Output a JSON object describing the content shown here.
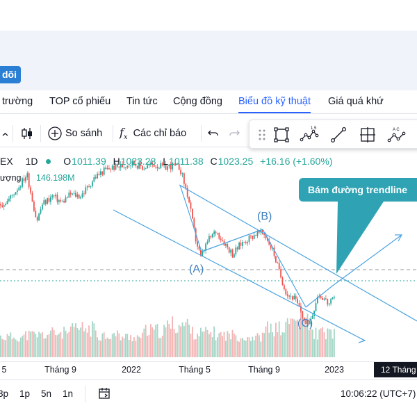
{
  "header": {
    "follow_button": "dõi"
  },
  "nav": {
    "tabs": [
      {
        "label": "trường"
      },
      {
        "label": "TOP cổ phiếu"
      },
      {
        "label": "Tin tức"
      },
      {
        "label": "Cộng đồng"
      },
      {
        "label": "Biểu đồ kỹ thuật",
        "active": true
      },
      {
        "label": "Giá quá khứ"
      }
    ]
  },
  "toolbar": {
    "compare_label": "So sánh",
    "indicators_label": "Các chỉ báo",
    "icons": [
      "chevron-down-icon",
      "candlestick-icon",
      "plus-circle-icon",
      "fx-icon",
      "undo-icon",
      "redo-icon"
    ]
  },
  "drawing_tools": [
    "drag-handle-icon",
    "rectangle-icon",
    "elliott-wave-icon",
    "trendline-icon",
    "measure-icon",
    "abc-pattern-icon"
  ],
  "legend": {
    "symbol": "EX",
    "interval": "1D",
    "open_label": "O",
    "open": "1011.39",
    "high_label": "H",
    "high": "1023.28",
    "low_label": "L",
    "low": "1011.38",
    "close_label": "C",
    "close": "1023.25",
    "change": "+16.16 (+1.60%)",
    "volume_label": "ượng",
    "volume": "146.198M"
  },
  "chart_data": {
    "type": "candlestick",
    "annotations": {
      "callout": "Bám đường trendline",
      "wave_a": "(A)",
      "wave_b": "(B)",
      "wave_c": "(C)"
    },
    "x_ticks": [
      "5",
      "Tháng 9",
      "2022",
      "Tháng 5",
      "Tháng 9",
      "2023"
    ],
    "crosshair_date": "12 Tháng",
    "price_path": [
      [
        0,
        1420
      ],
      [
        10,
        1430
      ],
      [
        25,
        1470
      ],
      [
        38,
        1510
      ],
      [
        45,
        1440
      ],
      [
        52,
        1370
      ],
      [
        60,
        1420
      ],
      [
        75,
        1445
      ],
      [
        88,
        1425
      ],
      [
        100,
        1450
      ],
      [
        115,
        1445
      ],
      [
        125,
        1470
      ],
      [
        135,
        1500
      ],
      [
        148,
        1520
      ],
      [
        160,
        1530
      ],
      [
        175,
        1535
      ],
      [
        190,
        1545
      ],
      [
        205,
        1530
      ],
      [
        220,
        1540
      ],
      [
        235,
        1530
      ],
      [
        245,
        1535
      ],
      [
        258,
        1530
      ],
      [
        270,
        1440
      ],
      [
        280,
        1320
      ],
      [
        288,
        1260
      ],
      [
        298,
        1310
      ],
      [
        310,
        1340
      ],
      [
        322,
        1305
      ],
      [
        334,
        1270
      ],
      [
        345,
        1300
      ],
      [
        358,
        1320
      ],
      [
        370,
        1335
      ],
      [
        380,
        1330
      ],
      [
        392,
        1280
      ],
      [
        402,
        1210
      ],
      [
        412,
        1150
      ],
      [
        422,
        1140
      ],
      [
        432,
        1100
      ],
      [
        440,
        1055
      ],
      [
        448,
        1085
      ],
      [
        456,
        1150
      ],
      [
        465,
        1140
      ],
      [
        472,
        1120
      ],
      [
        480,
        1135
      ]
    ],
    "volume_levels": [
      0.3,
      0.35,
      0.4,
      0.5,
      0.35,
      0.3,
      0.45,
      0.6,
      0.4,
      0.35,
      0.3,
      0.5,
      0.7,
      0.4
    ]
  },
  "bottom": {
    "ranges": [
      "3p",
      "1p",
      "5n",
      "1n"
    ],
    "clock": "10:06:22 (UTC+7)"
  }
}
